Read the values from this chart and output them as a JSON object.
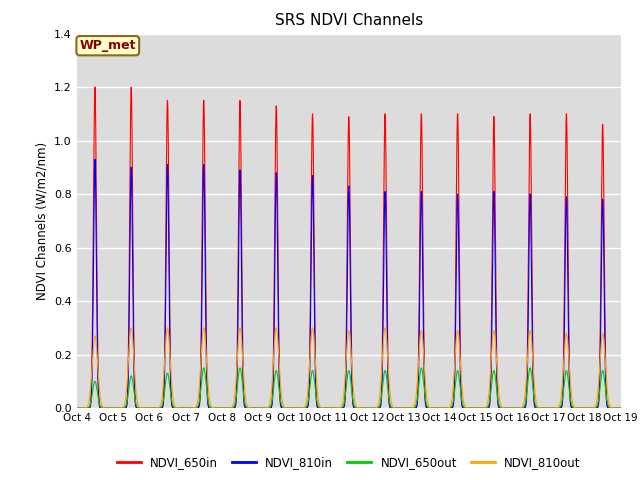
{
  "title": "SRS NDVI Channels",
  "ylabel": "NDVI Channels (W/m2/nm)",
  "xlabel": "",
  "ylim": [
    0,
    1.4
  ],
  "annotation_text": "WP_met",
  "legend_labels": [
    "NDVI_650in",
    "NDVI_810in",
    "NDVI_650out",
    "NDVI_810out"
  ],
  "line_colors": [
    "#ff0000",
    "#0000ff",
    "#00cc00",
    "#ffa500"
  ],
  "background_color": "#dcdcdc",
  "fig_background": "#ffffff",
  "num_days": 15,
  "peaks_650in": [
    1.2,
    1.2,
    1.15,
    1.15,
    1.15,
    1.13,
    1.1,
    1.09,
    1.1,
    1.1,
    1.1,
    1.09,
    1.1,
    1.1,
    1.06
  ],
  "peaks_810in": [
    0.93,
    0.9,
    0.91,
    0.91,
    0.89,
    0.88,
    0.87,
    0.83,
    0.81,
    0.81,
    0.8,
    0.81,
    0.8,
    0.79,
    0.78
  ],
  "peaks_650out": [
    0.1,
    0.12,
    0.13,
    0.15,
    0.15,
    0.14,
    0.14,
    0.14,
    0.14,
    0.15,
    0.14,
    0.14,
    0.15,
    0.14,
    0.14
  ],
  "peaks_810out": [
    0.27,
    0.3,
    0.3,
    0.3,
    0.3,
    0.3,
    0.3,
    0.29,
    0.3,
    0.29,
    0.29,
    0.29,
    0.29,
    0.28,
    0.28
  ],
  "xtick_labels": [
    "Oct 4",
    "Oct 5",
    "Oct 6",
    "Oct 7",
    "Oct 8",
    "Oct 9",
    "Oct 10",
    "Oct 11",
    "Oct 12",
    "Oct 13",
    "Oct 14",
    "Oct 15",
    "Oct 16",
    "Oct 17",
    "Oct 18",
    "Oct 19"
  ],
  "ytick_labels": [
    "0.0",
    "0.2",
    "0.4",
    "0.6",
    "0.8",
    "1.0",
    "1.2",
    "1.4"
  ]
}
